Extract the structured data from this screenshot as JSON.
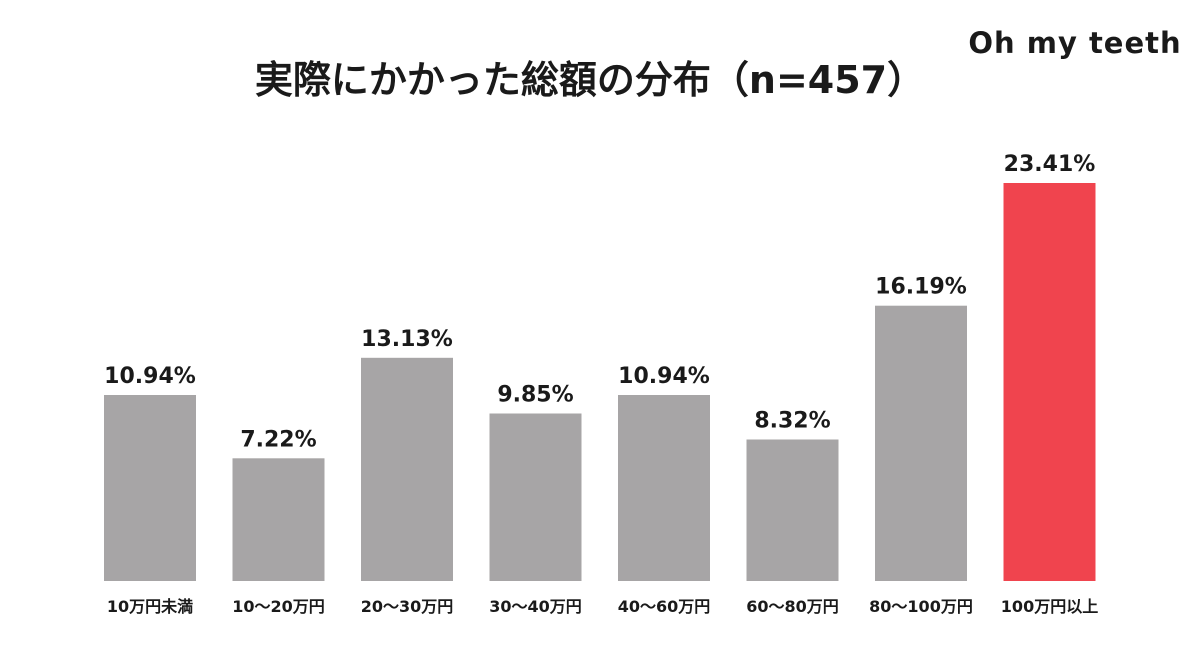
{
  "brand": "Oh my teeth",
  "chart_data": {
    "type": "bar",
    "title": "実際にかかった総額の分布（n=457）",
    "categories": [
      "10万円未満",
      "10～20万円",
      "20～30万円",
      "30～40万円",
      "40～60万円",
      "60～80万円",
      "80～100万円",
      "100万円以上"
    ],
    "values": [
      10.94,
      7.22,
      13.13,
      9.85,
      10.94,
      8.32,
      16.19,
      23.41
    ],
    "value_labels": [
      "10.94%",
      "7.22%",
      "13.13%",
      "9.85%",
      "10.94%",
      "8.32%",
      "16.19%",
      "23.41%"
    ],
    "highlight_index": 7,
    "colors": {
      "bar": "#a7a5a6",
      "highlight": "#f0444e",
      "text": "#1a1a1a"
    },
    "ylim": [
      0,
      25
    ],
    "grid": false,
    "legend": "none"
  }
}
